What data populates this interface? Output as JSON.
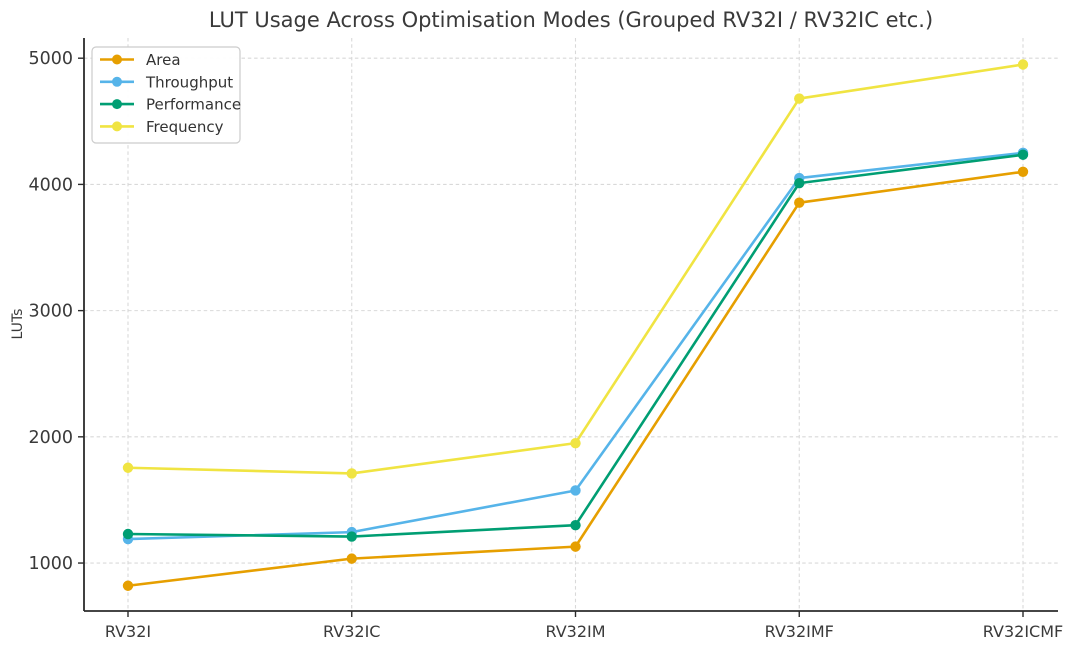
{
  "figure": {
    "background": "#ffffff"
  },
  "chart_data": {
    "type": "line",
    "title": "LUT Usage Across Optimisation Modes (Grouped RV32I / RV32IC etc.)",
    "xlabel": "",
    "ylabel": "LUTs",
    "categories": [
      "RV32I",
      "RV32IC",
      "RV32IM",
      "RV32IMF",
      "RV32ICMF"
    ],
    "series": [
      {
        "name": "Area",
        "color": "#E69F00",
        "values": [
          820,
          1035,
          1130,
          3855,
          4100
        ]
      },
      {
        "name": "Throughput",
        "color": "#56B4E9",
        "values": [
          1190,
          1245,
          1575,
          4050,
          4250
        ]
      },
      {
        "name": "Performance",
        "color": "#009E73",
        "values": [
          1230,
          1210,
          1300,
          4010,
          4235
        ]
      },
      {
        "name": "Frequency",
        "color": "#F0E442",
        "values": [
          1755,
          1710,
          1950,
          4680,
          4950
        ]
      }
    ],
    "yticks": [
      1000,
      2000,
      3000,
      4000,
      5000
    ],
    "ylim": [
      620,
      5160
    ],
    "grid": "dashed-both-axes",
    "legend_position": "upper-left",
    "marker": "circle",
    "style": {
      "grid_color": "#d9d9d9",
      "spine_color": "#2b2b2b",
      "text_color": "#3a3a3a",
      "legend_border_color": "#cccccc",
      "legend_background": "#ffffff"
    }
  }
}
